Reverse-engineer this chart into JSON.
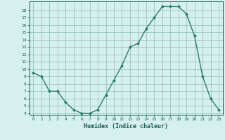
{
  "x": [
    0,
    1,
    2,
    3,
    4,
    5,
    6,
    7,
    8,
    9,
    10,
    11,
    12,
    13,
    14,
    15,
    16,
    17,
    18,
    19,
    20,
    21,
    22,
    23
  ],
  "y": [
    9.5,
    9.0,
    7.0,
    7.0,
    5.5,
    4.5,
    4.0,
    4.0,
    4.5,
    6.5,
    8.5,
    10.5,
    13.0,
    13.5,
    15.5,
    17.0,
    18.5,
    18.5,
    18.5,
    17.5,
    14.5,
    9.0,
    6.0,
    4.5
  ],
  "title": "",
  "xlabel": "Humidex (Indice chaleur)",
  "ylabel": "",
  "ylim": [
    3.8,
    19.2
  ],
  "xlim": [
    -0.5,
    23.5
  ],
  "line_color": "#2e7d6e",
  "marker_color": "#2e7d6e",
  "bg_color": "#d6f0ef",
  "grid_color": "#8bbcb8",
  "yticks": [
    4,
    5,
    6,
    7,
    8,
    9,
    10,
    11,
    12,
    13,
    14,
    15,
    16,
    17,
    18
  ],
  "xticks": [
    0,
    1,
    2,
    3,
    4,
    5,
    6,
    7,
    8,
    9,
    10,
    11,
    12,
    13,
    14,
    15,
    16,
    17,
    18,
    19,
    20,
    21,
    22,
    23
  ]
}
